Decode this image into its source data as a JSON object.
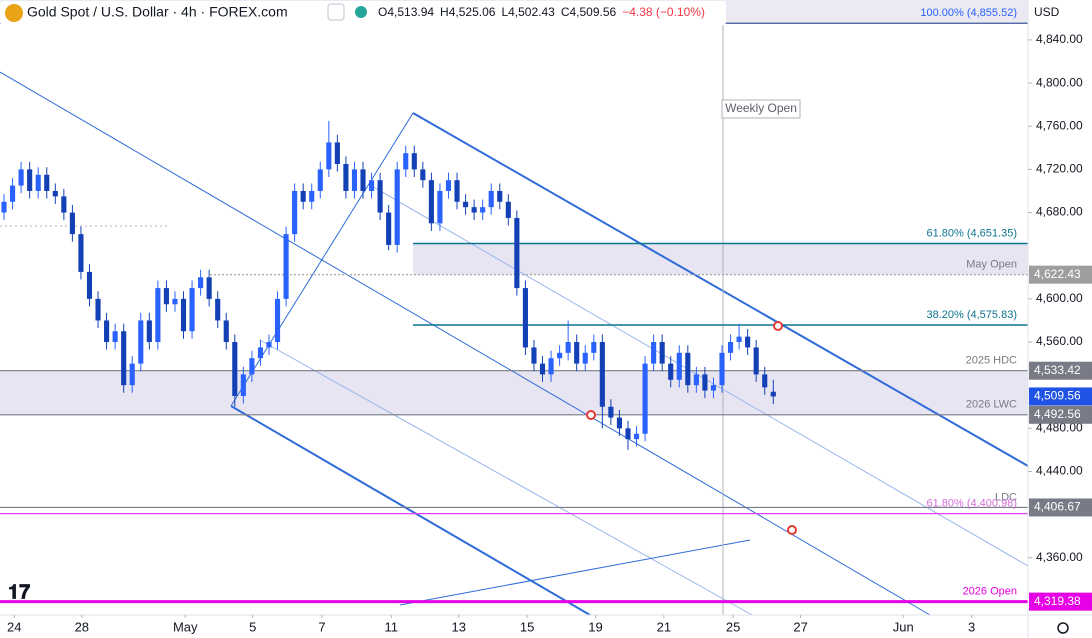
{
  "header": {
    "title": "Gold Spot / U.S. Dollar · 4h · FOREX.com",
    "ohlc": [
      "O4,513.94",
      "H4,525.06",
      "L4,502.43",
      "C4,509.56",
      "−4.38 (−0.10%)"
    ],
    "currency": "USD"
  },
  "chart_data": {
    "type": "candlestick",
    "up_color": "#2962ff",
    "down_color": "#1341b5",
    "candles": [
      [
        4680,
        4697,
        4673,
        4690
      ],
      [
        4690,
        4712,
        4683,
        4705
      ],
      [
        4705,
        4727,
        4698,
        4720
      ],
      [
        4720,
        4727,
        4693,
        4700
      ],
      [
        4700,
        4722,
        4693,
        4715
      ],
      [
        4715,
        4722,
        4693,
        4700
      ],
      [
        4700,
        4707,
        4688,
        4695
      ],
      [
        4695,
        4702,
        4673,
        4680
      ],
      [
        4680,
        4687,
        4653,
        4660
      ],
      [
        4660,
        4667,
        4618,
        4625
      ],
      [
        4625,
        4632,
        4593,
        4600
      ],
      [
        4600,
        4607,
        4573,
        4580
      ],
      [
        4580,
        4587,
        4553,
        4560
      ],
      [
        4560,
        4577,
        4553,
        4570
      ],
      [
        4570,
        4577,
        4513,
        4520
      ],
      [
        4520,
        4547,
        4513,
        4540
      ],
      [
        4540,
        4587,
        4533,
        4580
      ],
      [
        4580,
        4587,
        4553,
        4560
      ],
      [
        4560,
        4617,
        4553,
        4610
      ],
      [
        4610,
        4617,
        4588,
        4595
      ],
      [
        4595,
        4607,
        4588,
        4600
      ],
      [
        4600,
        4607,
        4563,
        4570
      ],
      [
        4570,
        4617,
        4563,
        4610
      ],
      [
        4610,
        4627,
        4603,
        4620
      ],
      [
        4620,
        4627,
        4593,
        4600
      ],
      [
        4600,
        4607,
        4573,
        4580
      ],
      [
        4580,
        4587,
        4553,
        4560
      ],
      [
        4560,
        4567,
        4500,
        4510
      ],
      [
        4510,
        4537,
        4503,
        4530
      ],
      [
        4530,
        4552,
        4523,
        4545
      ],
      [
        4545,
        4562,
        4538,
        4555
      ],
      [
        4555,
        4567,
        4548,
        4560
      ],
      [
        4560,
        4607,
        4553,
        4600
      ],
      [
        4600,
        4667,
        4593,
        4660
      ],
      [
        4660,
        4707,
        4653,
        4700
      ],
      [
        4700,
        4707,
        4683,
        4690
      ],
      [
        4690,
        4707,
        4683,
        4700
      ],
      [
        4700,
        4727,
        4693,
        4720
      ],
      [
        4720,
        4765,
        4713,
        4745
      ],
      [
        4745,
        4752,
        4718,
        4725
      ],
      [
        4725,
        4732,
        4693,
        4700
      ],
      [
        4700,
        4727,
        4693,
        4720
      ],
      [
        4720,
        4727,
        4693,
        4700
      ],
      [
        4700,
        4717,
        4693,
        4710
      ],
      [
        4710,
        4717,
        4673,
        4680
      ],
      [
        4680,
        4687,
        4645,
        4650
      ],
      [
        4650,
        4727,
        4643,
        4720
      ],
      [
        4720,
        4742,
        4713,
        4735
      ],
      [
        4735,
        4742,
        4713,
        4720
      ],
      [
        4720,
        4727,
        4703,
        4710
      ],
      [
        4710,
        4717,
        4663,
        4670
      ],
      [
        4670,
        4707,
        4663,
        4700
      ],
      [
        4700,
        4717,
        4693,
        4710
      ],
      [
        4710,
        4717,
        4683,
        4690
      ],
      [
        4690,
        4697,
        4678,
        4685
      ],
      [
        4685,
        4692,
        4673,
        4680
      ],
      [
        4680,
        4692,
        4673,
        4685
      ],
      [
        4685,
        4707,
        4678,
        4700
      ],
      [
        4700,
        4707,
        4683,
        4690
      ],
      [
        4690,
        4697,
        4668,
        4675
      ],
      [
        4675,
        4682,
        4603,
        4610
      ],
      [
        4610,
        4617,
        4548,
        4555
      ],
      [
        4555,
        4562,
        4533,
        4540
      ],
      [
        4540,
        4547,
        4523,
        4530
      ],
      [
        4530,
        4552,
        4523,
        4545
      ],
      [
        4545,
        4557,
        4538,
        4550
      ],
      [
        4550,
        4580,
        4543,
        4560
      ],
      [
        4560,
        4567,
        4533,
        4540
      ],
      [
        4540,
        4557,
        4533,
        4550
      ],
      [
        4550,
        4567,
        4543,
        4560
      ],
      [
        4560,
        4567,
        4480,
        4500
      ],
      [
        4500,
        4507,
        4483,
        4490
      ],
      [
        4490,
        4497,
        4473,
        4480
      ],
      [
        4480,
        4487,
        4460,
        4470
      ],
      [
        4470,
        4482,
        4463,
        4475
      ],
      [
        4475,
        4547,
        4468,
        4540
      ],
      [
        4540,
        4567,
        4533,
        4560
      ],
      [
        4560,
        4567,
        4533,
        4540
      ],
      [
        4540,
        4547,
        4518,
        4525
      ],
      [
        4525,
        4557,
        4518,
        4550
      ],
      [
        4550,
        4557,
        4513,
        4520
      ],
      [
        4520,
        4537,
        4513,
        4530
      ],
      [
        4530,
        4537,
        4508,
        4515
      ],
      [
        4515,
        4527,
        4508,
        4520
      ],
      [
        4520,
        4557,
        4513,
        4550
      ],
      [
        4550,
        4567,
        4543,
        4560
      ],
      [
        4560,
        4577,
        4553,
        4565
      ],
      [
        4565,
        4572,
        4548,
        4555
      ],
      [
        4555,
        4562,
        4523,
        4530
      ],
      [
        4530,
        4537,
        4511,
        4518
      ],
      [
        4513.94,
        4525.06,
        4502.43,
        4509.56
      ]
    ],
    "xlim": [
      -0.47,
      119.8
    ],
    "xticks": [
      {
        "value": 1.2,
        "label": "24"
      },
      {
        "value": 9.1,
        "label": "28"
      },
      {
        "value": 21.2,
        "label": "May"
      },
      {
        "value": 29.1,
        "label": "5"
      },
      {
        "value": 37.2,
        "label": "7"
      },
      {
        "value": 45.3,
        "label": "11"
      },
      {
        "value": 53.2,
        "label": "13"
      },
      {
        "value": 61.2,
        "label": "15"
      },
      {
        "value": 69.2,
        "label": "19"
      },
      {
        "value": 77.2,
        "label": "21"
      },
      {
        "value": 85.3,
        "label": "25"
      },
      {
        "value": 93.2,
        "label": "27"
      },
      {
        "value": 105.2,
        "label": "Jun"
      },
      {
        "value": 113.2,
        "label": "3"
      }
    ],
    "ylim": [
      4307,
      4877
    ],
    "yticks": [
      {
        "value": 4840,
        "label": "4,840.00"
      },
      {
        "value": 4800,
        "label": "4,800.00"
      },
      {
        "value": 4760,
        "label": "4,760.00"
      },
      {
        "value": 4720,
        "label": "4,720.00"
      },
      {
        "value": 4680,
        "label": "4,680.00"
      },
      {
        "value": 4600,
        "label": "4,600.00"
      },
      {
        "value": 4560,
        "label": "4,560.00"
      },
      {
        "value": 4480,
        "label": "4,480.00"
      },
      {
        "value": 4440,
        "label": "4,440.00"
      },
      {
        "value": 4360,
        "label": "4,360.00"
      }
    ],
    "levels": [
      {
        "value": 4855.52,
        "text": "100.00% (4,855.52)",
        "color": "#1e3a8a"
      },
      {
        "value": 4651.35,
        "text": "61.80% (4,651.35)",
        "color": "#0e7490"
      },
      {
        "value": 4622.43,
        "text": "May Open",
        "badge": "4,622.43",
        "color": "#9e9e9e"
      },
      {
        "value": 4575.83,
        "text": "38.20% (4,575.83)",
        "color": "#0e7490"
      },
      {
        "value": 4533.42,
        "text": "2025 HDC",
        "badge": "4,533.42",
        "color": "#787b86"
      },
      {
        "value": 4492.56,
        "text": "2026 LWC",
        "badge": "4,492.56",
        "color": "#787b86"
      },
      {
        "value": 4406.67,
        "text": "LDC",
        "badge": "4,406.67",
        "color": "#787b86"
      },
      {
        "value": 4400.98,
        "text": "61.80% (4,400.98)",
        "color": "#e040fb"
      },
      {
        "value": 4319.38,
        "text": "2026 Open",
        "badge": "4,319.38",
        "color": "#e600e6"
      }
    ],
    "last_price": {
      "value": 4509.56,
      "label": "4,509.56",
      "color": "#1e53e5"
    },
    "annotation": "Weekly Open"
  }
}
